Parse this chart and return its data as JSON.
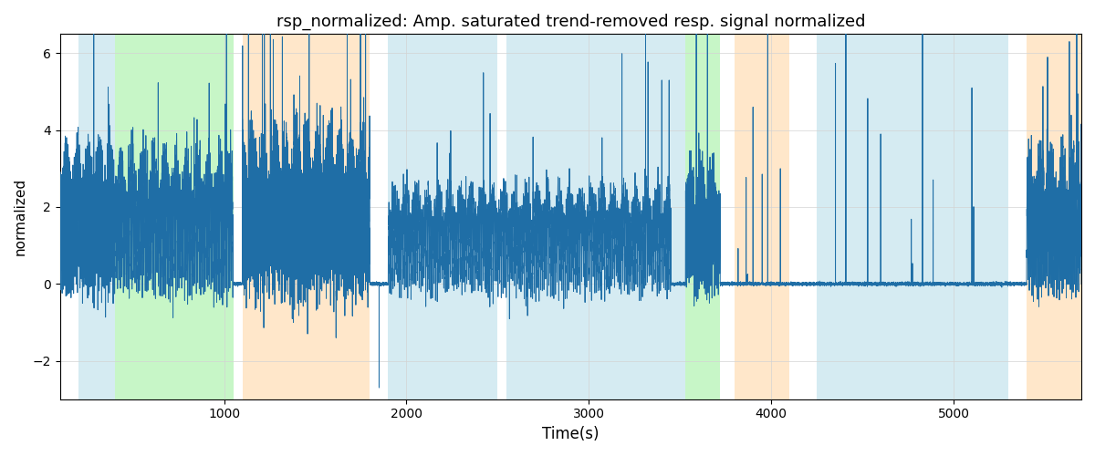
{
  "title": "rsp_normalized: Amp. saturated trend-removed resp. signal normalized",
  "xlabel": "Time(s)",
  "ylabel": "normalized",
  "xlim": [
    100,
    5700
  ],
  "ylim": [
    -3,
    6.5
  ],
  "yticks": [
    -2,
    0,
    2,
    4,
    6
  ],
  "line_color": "#1f6ea6",
  "line_width": 0.7,
  "bg_color": "white",
  "seed": 42,
  "regions": [
    {
      "start": 200,
      "end": 400,
      "color": "#add8e6",
      "alpha": 0.5
    },
    {
      "start": 400,
      "end": 1050,
      "color": "#90ee90",
      "alpha": 0.5
    },
    {
      "start": 1100,
      "end": 1800,
      "color": "#ffd8a8",
      "alpha": 0.6
    },
    {
      "start": 1900,
      "end": 2500,
      "color": "#add8e6",
      "alpha": 0.5
    },
    {
      "start": 2550,
      "end": 3450,
      "color": "#add8e6",
      "alpha": 0.5
    },
    {
      "start": 3450,
      "end": 3530,
      "color": "#add8e6",
      "alpha": 0.5
    },
    {
      "start": 3530,
      "end": 3720,
      "color": "#90ee90",
      "alpha": 0.5
    },
    {
      "start": 3800,
      "end": 4100,
      "color": "#ffd8a8",
      "alpha": 0.6
    },
    {
      "start": 4250,
      "end": 5300,
      "color": "#add8e6",
      "alpha": 0.5
    },
    {
      "start": 5400,
      "end": 5700,
      "color": "#ffd8a8",
      "alpha": 0.6
    }
  ]
}
